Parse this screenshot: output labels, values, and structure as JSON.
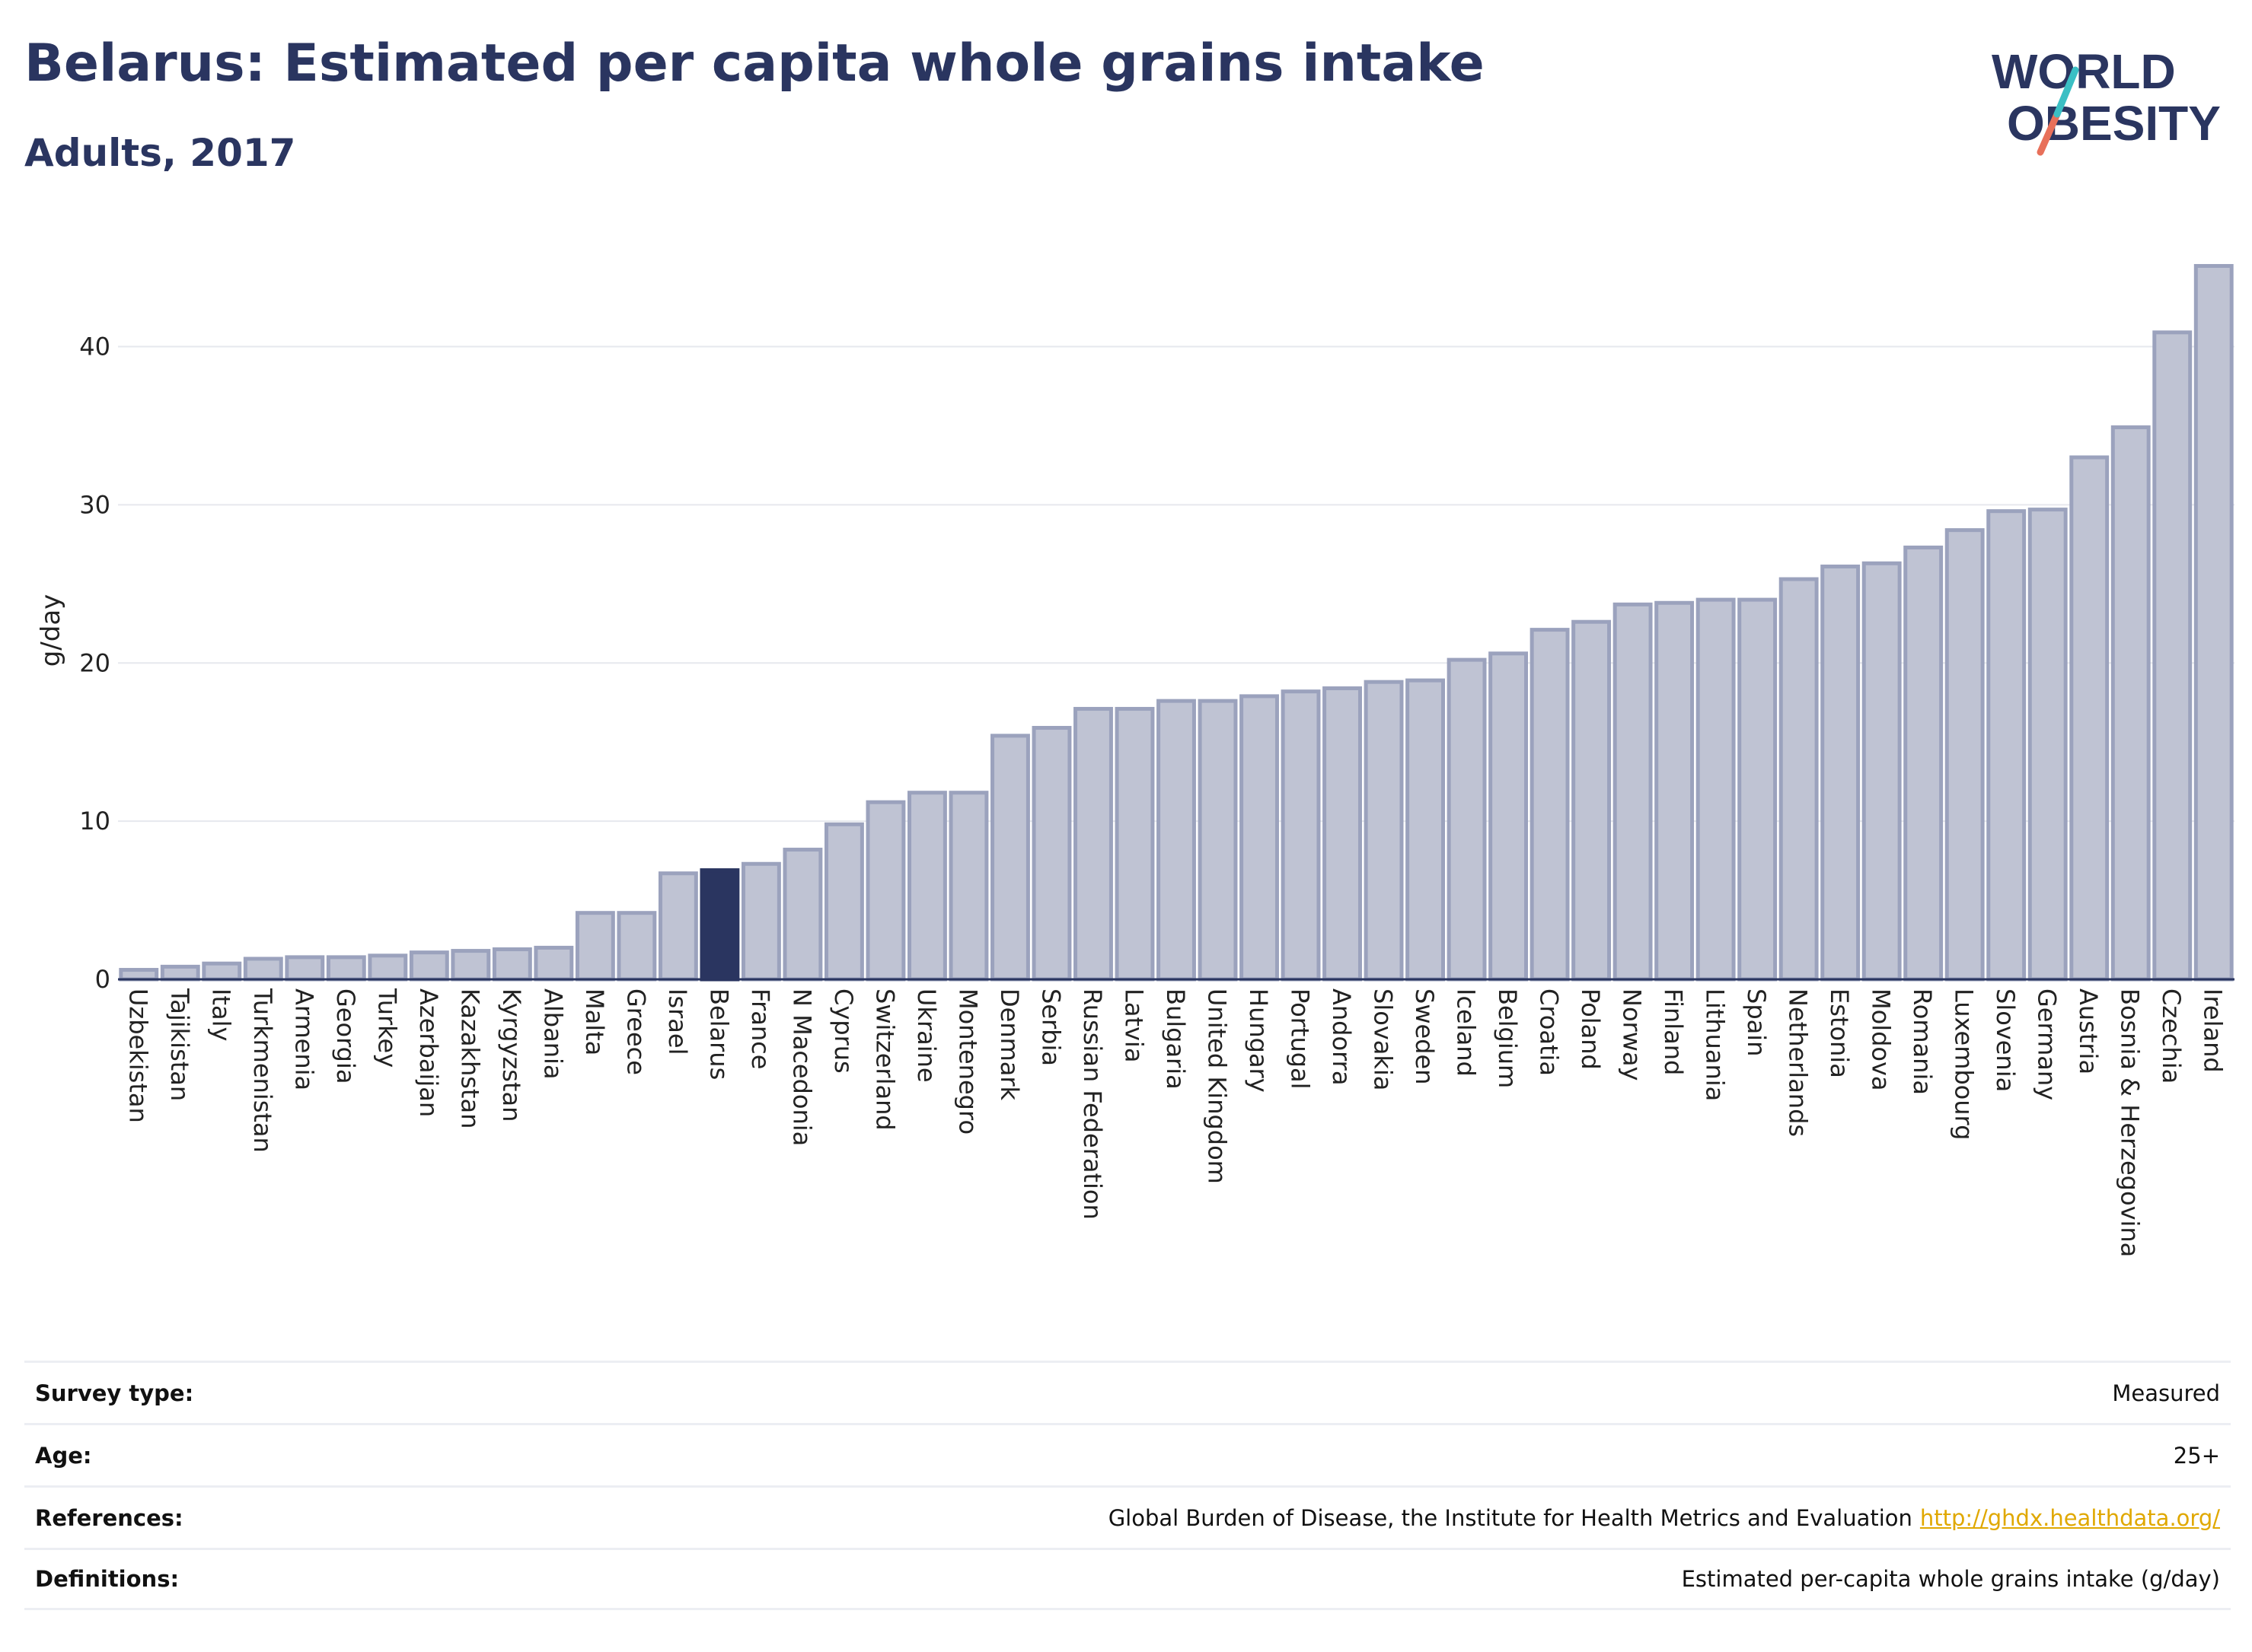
{
  "header": {
    "title": "Belarus: Estimated per capita whole grains intake",
    "subtitle": "Adults, 2017"
  },
  "logo": {
    "line1": "WORLD",
    "line2": "OBESITY"
  },
  "colors": {
    "highlight": "#2a3560",
    "bar_fill": "#bfc3d3",
    "bar_stroke": "#9ba2bd",
    "text": "#2a3560",
    "link": "#e0a800"
  },
  "chart_data": {
    "type": "bar",
    "ylabel": "g/day",
    "xlabel": "",
    "ylim": [
      0,
      47
    ],
    "yticks": [
      0,
      10,
      20,
      30,
      40
    ],
    "grid": true,
    "highlight": "Belarus",
    "categories": [
      "Uzbekistan",
      "Tajikistan",
      "Italy",
      "Turkmenistan",
      "Armenia",
      "Georgia",
      "Turkey",
      "Azerbaijan",
      "Kazakhstan",
      "Kyrgyzstan",
      "Albania",
      "Malta",
      "Greece",
      "Israel",
      "Belarus",
      "France",
      "N Macedonia",
      "Cyprus",
      "Switzerland",
      "Ukraine",
      "Montenegro",
      "Denmark",
      "Serbia",
      "Russian Federation",
      "Latvia",
      "Bulgaria",
      "United Kingdom",
      "Hungary",
      "Portugal",
      "Andorra",
      "Slovakia",
      "Sweden",
      "Iceland",
      "Belgium",
      "Croatia",
      "Poland",
      "Norway",
      "Finland",
      "Lithuania",
      "Spain",
      "Netherlands",
      "Estonia",
      "Moldova",
      "Romania",
      "Luxembourg",
      "Slovenia",
      "Germany",
      "Austria",
      "Bosnia & Herzegovina",
      "Czechia",
      "Ireland"
    ],
    "values": [
      0.6,
      0.8,
      1.0,
      1.3,
      1.4,
      1.4,
      1.5,
      1.7,
      1.8,
      1.9,
      2.0,
      4.2,
      4.2,
      6.7,
      6.9,
      7.3,
      8.2,
      9.8,
      11.2,
      11.8,
      11.8,
      15.4,
      15.9,
      17.1,
      17.1,
      17.6,
      17.6,
      17.9,
      18.2,
      18.4,
      18.8,
      18.9,
      20.2,
      20.6,
      22.1,
      22.6,
      23.7,
      23.8,
      24.0,
      24.0,
      25.3,
      26.1,
      26.3,
      27.3,
      28.4,
      29.6,
      29.7,
      33.0,
      34.9,
      40.9,
      45.1
    ]
  },
  "info": {
    "survey_type_label": "Survey type:",
    "survey_type_value": "Measured",
    "age_label": "Age:",
    "age_value": "25+",
    "references_label": "References:",
    "references_value": "Global Burden of Disease, the Institute for Health Metrics and Evaluation",
    "references_link": "http://ghdx.healthdata.org/",
    "definitions_label": "Definitions:",
    "definitions_value": "Estimated per-capita whole grains intake (g/day)"
  }
}
